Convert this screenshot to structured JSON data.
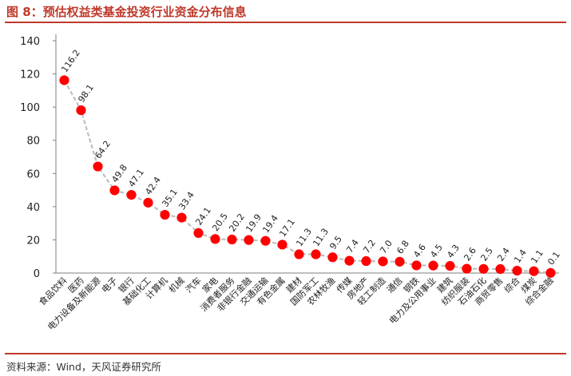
{
  "header": {
    "title": "图 8：预估权益类基金投资行业资金分布信息"
  },
  "footer": {
    "source": "资料来源：Wind，天风证券研究所"
  },
  "colors": {
    "title": "#c0392b",
    "rule": "#c0392b",
    "marker": "#ff0000",
    "line": "#bfbfbf",
    "axis": "#7f7f7f"
  },
  "chart_data": {
    "type": "line",
    "title": "",
    "xlabel": "",
    "ylabel": "",
    "ylim": [
      0,
      140
    ],
    "yticks": [
      0,
      20,
      40,
      60,
      80,
      100,
      120,
      140
    ],
    "grid": false,
    "legend": "none",
    "line_style": "dashed",
    "categories": [
      "食品饮料",
      "医药",
      "电力设备及新能源",
      "电子",
      "银行",
      "基础化工",
      "计算机",
      "机械",
      "汽车",
      "家电",
      "消费者服务",
      "非银行金融",
      "交通运输",
      "有色金属",
      "建材",
      "国防军工",
      "农林牧渔",
      "传媒",
      "房地产",
      "轻工制造",
      "通信",
      "钢铁",
      "电力及公用事业",
      "建筑",
      "纺织服装",
      "石油石化",
      "商贸零售",
      "综合",
      "煤炭",
      "综合金融"
    ],
    "values": [
      116.2,
      98.1,
      64.2,
      49.8,
      47.1,
      42.4,
      35.1,
      33.4,
      24.1,
      20.5,
      20.2,
      19.9,
      19.4,
      17.1,
      11.3,
      11.3,
      9.5,
      7.4,
      7.2,
      7.0,
      6.8,
      4.6,
      4.5,
      4.3,
      2.6,
      2.5,
      2.4,
      1.4,
      1.1,
      0.1
    ],
    "value_labels": [
      "116.2",
      "98.1",
      "64.2",
      "49.8",
      "47.1",
      "42.4",
      "35.1",
      "33.4",
      "24.1",
      "20.5",
      "20.2",
      "19.9",
      "19.4",
      "17.1",
      "11.3",
      "11.3",
      "9.5",
      "7.4",
      "7.2",
      "7.0",
      "6.8",
      "4.6",
      "4.5",
      "4.3",
      "2.6",
      "2.5",
      "2.4",
      "1.4",
      "1.1",
      "0.1"
    ]
  }
}
